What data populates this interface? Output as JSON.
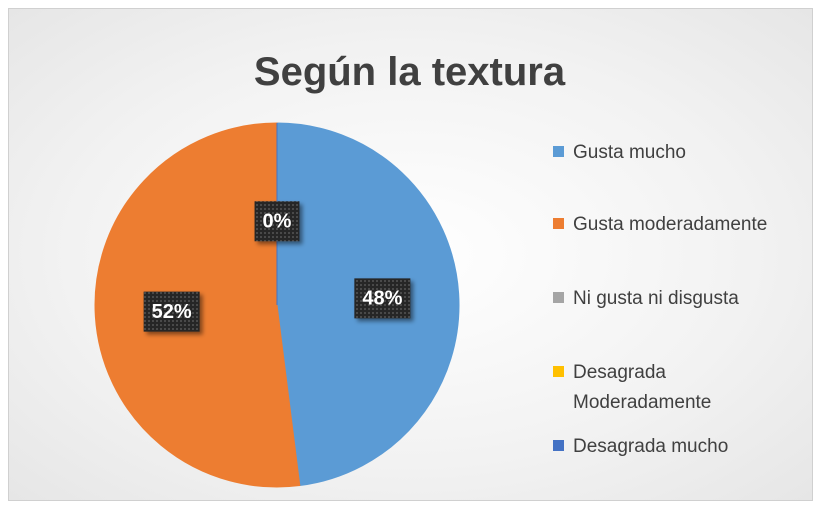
{
  "chart_data": {
    "type": "pie",
    "title": "Según la textura",
    "categories": [
      "Gusta mucho",
      "Gusta moderadamente",
      "Ni gusta ni disgusta",
      "Desagrada Moderadamente",
      "Desagrada mucho"
    ],
    "values": [
      48,
      52,
      0,
      0,
      0
    ],
    "value_labels": [
      "48%",
      "52%",
      "0%",
      null,
      null
    ],
    "colors": [
      "#5b9bd5",
      "#ed7d31",
      "#a5a5a5",
      "#ffc000",
      "#4472c4"
    ],
    "legend": "right"
  }
}
